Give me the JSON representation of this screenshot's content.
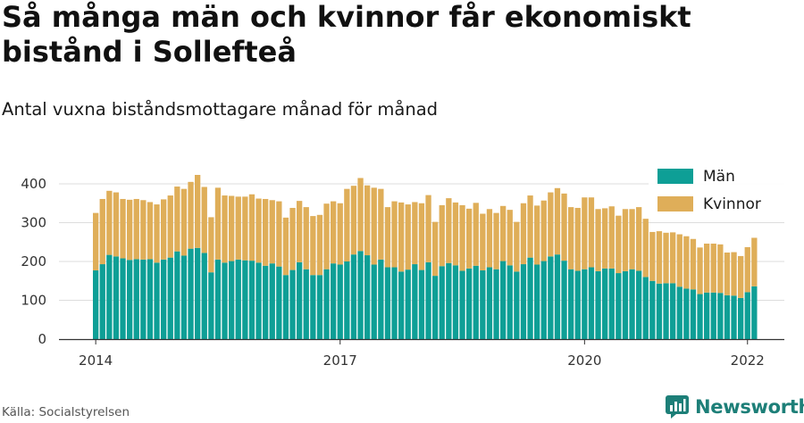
{
  "title": "Så många män och kvinnor får ekonomiskt bistånd i Sollefteå",
  "subtitle": "Antal vuxna biståndsmottagare månad för månad",
  "source": "Källa: Socialstyrelsen",
  "brand": "Newsworthy",
  "colors": {
    "men": "#0e9f96",
    "women": "#dfae59",
    "brand": "#1d7f78",
    "grid": "#dddddd"
  },
  "chart_data": {
    "type": "bar",
    "stacked": true,
    "x_ticks": [
      "2014",
      "2017",
      "2020",
      "2022"
    ],
    "x_tick_positions": [
      0,
      36,
      72,
      96
    ],
    "y_ticks": [
      0,
      100,
      200,
      300,
      400
    ],
    "ylim": [
      0,
      440
    ],
    "grid": "horizontal",
    "legend_position": "top-right",
    "series": [
      {
        "name": "Män",
        "values": [
          177,
          193,
          217,
          213,
          208,
          204,
          206,
          205,
          206,
          197,
          205,
          210,
          226,
          215,
          233,
          235,
          222,
          172,
          205,
          197,
          201,
          205,
          203,
          202,
          197,
          189,
          195,
          187,
          165,
          178,
          198,
          180,
          165,
          165,
          180,
          195,
          192,
          200,
          218,
          227,
          216,
          192,
          205,
          185,
          185,
          174,
          179,
          193,
          178,
          198,
          163,
          188,
          196,
          190,
          176,
          182,
          189,
          177,
          185,
          180,
          201,
          190,
          174,
          193,
          210,
          192,
          201,
          213,
          218,
          202,
          180,
          176,
          180,
          185,
          175,
          182,
          182,
          170,
          175,
          180,
          176,
          160,
          150,
          143,
          144,
          144,
          135,
          130,
          128,
          116,
          120,
          120,
          119,
          113,
          112,
          106,
          121,
          136
        ]
      },
      {
        "name": "Kvinnor",
        "values": [
          148,
          168,
          165,
          165,
          153,
          155,
          155,
          153,
          147,
          150,
          155,
          160,
          167,
          172,
          172,
          188,
          170,
          142,
          185,
          173,
          168,
          162,
          164,
          171,
          165,
          172,
          163,
          168,
          148,
          160,
          158,
          160,
          152,
          155,
          169,
          160,
          158,
          187,
          177,
          188,
          180,
          198,
          182,
          155,
          170,
          178,
          168,
          160,
          172,
          173,
          139,
          157,
          167,
          162,
          169,
          154,
          162,
          146,
          150,
          145,
          142,
          143,
          128,
          157,
          160,
          152,
          156,
          165,
          171,
          173,
          160,
          162,
          185,
          180,
          160,
          155,
          160,
          148,
          160,
          155,
          164,
          150,
          126,
          135,
          130,
          131,
          135,
          135,
          130,
          120,
          126,
          126,
          125,
          110,
          112,
          108,
          116,
          125
        ]
      }
    ]
  }
}
